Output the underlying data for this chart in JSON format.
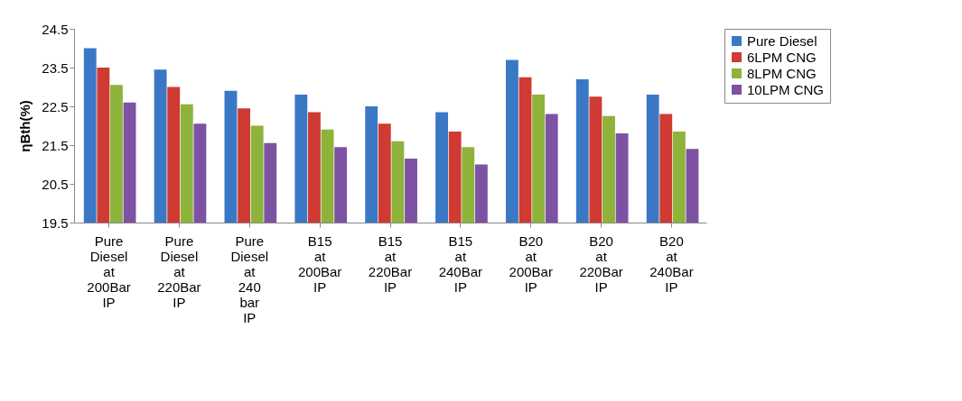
{
  "chart_data": {
    "type": "bar",
    "ylabel": "ηBth(%)",
    "categories": [
      "Pure Diesel at 200Bar IP",
      "Pure Diesel at 220Bar IP",
      "Pure Diesel at 240 bar IP",
      "B15 at 200Bar IP",
      "B15 at 220Bar IP",
      "B15 at 240Bar IP",
      "B20 at 200Bar IP",
      "B20 at 220Bar IP",
      "B20 at 240Bar IP"
    ],
    "series": [
      {
        "name": "Pure Diesel",
        "color": "#3a78c6",
        "values": [
          24.0,
          23.45,
          22.9,
          22.8,
          22.5,
          22.35,
          23.7,
          23.2,
          22.8
        ]
      },
      {
        "name": "6LPM CNG",
        "color": "#cf3a32",
        "values": [
          23.5,
          23.0,
          22.45,
          22.35,
          22.05,
          21.85,
          23.25,
          22.75,
          22.3
        ]
      },
      {
        "name": "8LPM CNG",
        "color": "#8db33a",
        "values": [
          23.05,
          22.55,
          22.0,
          21.9,
          21.6,
          21.45,
          22.8,
          22.25,
          21.85
        ]
      },
      {
        "name": "10LPM CNG",
        "color": "#7d52a3",
        "values": [
          22.6,
          22.05,
          21.55,
          21.45,
          21.15,
          21.0,
          22.3,
          21.8,
          21.4
        ]
      }
    ],
    "ylim": [
      19.5,
      24.5
    ],
    "yticks": [
      19.5,
      20.5,
      21.5,
      22.5,
      23.5,
      24.5
    ],
    "grid": false,
    "legend": "top right"
  }
}
